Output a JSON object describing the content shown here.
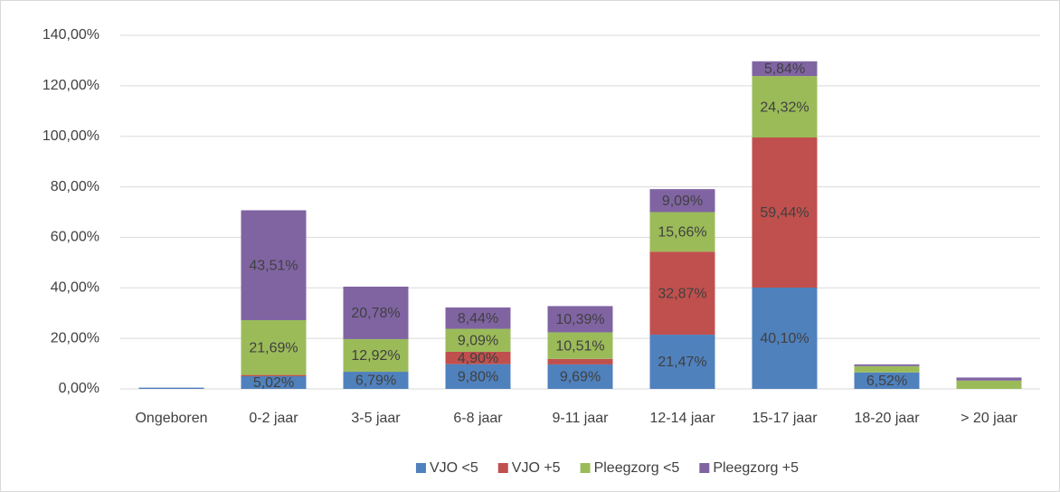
{
  "chart_data": {
    "type": "stacked-bar",
    "categories": [
      "Ongeboren",
      "0-2 jaar",
      "3-5 jaar",
      "6-8 jaar",
      "9-11 jaar",
      "12-14 jaar",
      "15-17 jaar",
      "18-20 jaar",
      "> 20 jaar"
    ],
    "series": [
      {
        "name": "VJO <5",
        "color": "#4f81bd",
        "values": [
          0.5,
          5.02,
          6.79,
          9.8,
          9.69,
          21.47,
          40.1,
          6.52,
          0
        ],
        "value_labels": [
          null,
          "5,02%",
          "6,79%",
          "9,80%",
          "9,69%",
          "21,47%",
          "40,10%",
          "6,52%",
          null
        ]
      },
      {
        "name": "VJO +5",
        "color": "#c0504d",
        "values": [
          0,
          0.5,
          0,
          4.9,
          2.2,
          32.87,
          59.44,
          0,
          0
        ],
        "value_labels": [
          null,
          null,
          null,
          "4,90%",
          null,
          "32,87%",
          "59,44%",
          null,
          null
        ]
      },
      {
        "name": "Pleegzorg <5",
        "color": "#9bbb59",
        "values": [
          0,
          21.69,
          12.92,
          9.09,
          10.51,
          15.66,
          24.32,
          2.5,
          3.3
        ],
        "value_labels": [
          null,
          "21,69%",
          "12,92%",
          "9,09%",
          "10,51%",
          "15,66%",
          "24,32%",
          null,
          null
        ]
      },
      {
        "name": "Pleegzorg +5",
        "color": "#8064a2",
        "values": [
          0,
          43.51,
          20.78,
          8.44,
          10.39,
          9.09,
          5.84,
          0.7,
          1.2
        ],
        "value_labels": [
          null,
          "43,51%",
          "20,78%",
          "8,44%",
          "10,39%",
          "9,09%",
          "5,84%",
          null,
          null
        ]
      }
    ],
    "ylim": [
      0,
      140
    ],
    "yticks": [
      {
        "value": 0,
        "label": "0,00%"
      },
      {
        "value": 20,
        "label": "20,00%"
      },
      {
        "value": 40,
        "label": "40,00%"
      },
      {
        "value": 60,
        "label": "60,00%"
      },
      {
        "value": 80,
        "label": "80,00%"
      },
      {
        "value": 100,
        "label": "100,00%"
      },
      {
        "value": 120,
        "label": "120,00%"
      },
      {
        "value": 140,
        "label": "140,00%"
      }
    ],
    "grid": true,
    "legend": "bottom"
  }
}
